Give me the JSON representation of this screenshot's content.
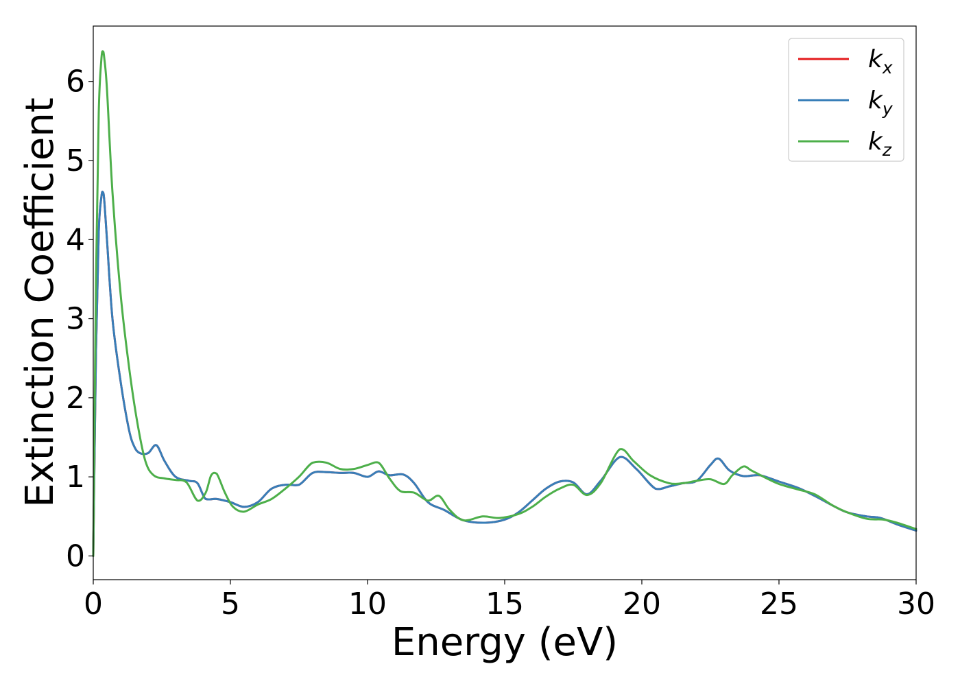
{
  "chart_data": {
    "type": "line",
    "title": "",
    "xlabel": "Energy (eV)",
    "ylabel": "Extinction Coefficient",
    "xlim": [
      0,
      30
    ],
    "ylim": [
      -0.3,
      6.7
    ],
    "xticks": [
      "0",
      "5",
      "10",
      "15",
      "20",
      "25",
      "30"
    ],
    "yticks": [
      "0",
      "1",
      "2",
      "3",
      "4",
      "5",
      "6"
    ],
    "grid": false,
    "legend_position": "top-right",
    "series": [
      {
        "name_base": "k",
        "name_sub": "x",
        "color": "#e41a1c",
        "x": [
          0,
          0.1,
          0.2,
          0.3,
          0.35,
          0.4,
          0.5,
          0.7,
          1.0,
          1.3,
          1.5,
          1.7,
          2.0,
          2.3,
          2.6,
          3.0,
          3.5,
          3.8,
          4.1,
          4.5,
          5.0,
          5.5,
          6.0,
          6.5,
          7.0,
          7.5,
          8.0,
          8.5,
          9.0,
          9.5,
          10.0,
          10.4,
          10.8,
          11.3,
          11.7,
          12.2,
          12.8,
          13.5,
          14.3,
          15.0,
          15.5,
          16.0,
          16.5,
          17.0,
          17.5,
          18.0,
          18.5,
          19.2,
          19.8,
          20.5,
          21.0,
          21.5,
          22.0,
          22.5,
          22.8,
          23.2,
          23.7,
          24.3,
          25.0,
          25.7,
          26.3,
          27.0,
          27.5,
          28.2,
          28.7,
          29.3,
          30.0
        ],
        "y": [
          0.0,
          2.6,
          4.1,
          4.55,
          4.6,
          4.5,
          4.0,
          3.0,
          2.2,
          1.6,
          1.38,
          1.3,
          1.3,
          1.4,
          1.2,
          1.0,
          0.95,
          0.92,
          0.72,
          0.72,
          0.68,
          0.62,
          0.68,
          0.85,
          0.9,
          0.9,
          1.05,
          1.06,
          1.05,
          1.05,
          1.0,
          1.07,
          1.02,
          1.03,
          0.92,
          0.68,
          0.58,
          0.45,
          0.42,
          0.46,
          0.55,
          0.7,
          0.85,
          0.94,
          0.93,
          0.78,
          0.95,
          1.25,
          1.1,
          0.85,
          0.88,
          0.92,
          0.95,
          1.15,
          1.23,
          1.08,
          1.01,
          1.02,
          0.94,
          0.86,
          0.76,
          0.63,
          0.55,
          0.5,
          0.48,
          0.4,
          0.32
        ]
      },
      {
        "name_base": "k",
        "name_sub": "y",
        "color": "#377eb8",
        "x": [
          0,
          0.1,
          0.2,
          0.3,
          0.35,
          0.4,
          0.5,
          0.7,
          1.0,
          1.3,
          1.5,
          1.7,
          2.0,
          2.3,
          2.6,
          3.0,
          3.5,
          3.8,
          4.1,
          4.5,
          5.0,
          5.5,
          6.0,
          6.5,
          7.0,
          7.5,
          8.0,
          8.5,
          9.0,
          9.5,
          10.0,
          10.4,
          10.8,
          11.3,
          11.7,
          12.2,
          12.8,
          13.5,
          14.3,
          15.0,
          15.5,
          16.0,
          16.5,
          17.0,
          17.5,
          18.0,
          18.5,
          19.2,
          19.8,
          20.5,
          21.0,
          21.5,
          22.0,
          22.5,
          22.8,
          23.2,
          23.7,
          24.3,
          25.0,
          25.7,
          26.3,
          27.0,
          27.5,
          28.2,
          28.7,
          29.3,
          30.0
        ],
        "y": [
          0.0,
          2.6,
          4.1,
          4.55,
          4.6,
          4.5,
          4.0,
          3.0,
          2.2,
          1.6,
          1.38,
          1.3,
          1.3,
          1.4,
          1.2,
          1.0,
          0.95,
          0.92,
          0.72,
          0.72,
          0.68,
          0.62,
          0.68,
          0.85,
          0.9,
          0.9,
          1.05,
          1.06,
          1.05,
          1.05,
          1.0,
          1.07,
          1.02,
          1.03,
          0.92,
          0.68,
          0.58,
          0.45,
          0.42,
          0.46,
          0.55,
          0.7,
          0.85,
          0.94,
          0.93,
          0.78,
          0.95,
          1.25,
          1.1,
          0.85,
          0.88,
          0.92,
          0.95,
          1.15,
          1.23,
          1.08,
          1.01,
          1.02,
          0.94,
          0.86,
          0.76,
          0.63,
          0.55,
          0.5,
          0.48,
          0.4,
          0.32
        ]
      },
      {
        "name_base": "k",
        "name_sub": "z",
        "color": "#4daf4a",
        "x": [
          0,
          0.1,
          0.2,
          0.3,
          0.35,
          0.4,
          0.5,
          0.7,
          1.0,
          1.3,
          1.6,
          1.9,
          2.2,
          2.6,
          3.0,
          3.4,
          3.8,
          4.1,
          4.3,
          4.5,
          4.8,
          5.1,
          5.5,
          6.0,
          6.5,
          7.0,
          7.5,
          8.0,
          8.5,
          9.0,
          9.5,
          10.0,
          10.4,
          10.8,
          11.2,
          11.7,
          12.2,
          12.6,
          13.0,
          13.5,
          14.2,
          14.8,
          15.5,
          16.0,
          16.5,
          17.0,
          17.5,
          18.0,
          18.5,
          19.2,
          19.7,
          20.3,
          21.0,
          21.5,
          22.0,
          22.5,
          23.0,
          23.3,
          23.7,
          24.0,
          24.5,
          25.0,
          25.7,
          26.3,
          27.0,
          27.5,
          28.2,
          28.8,
          29.3,
          30.0
        ],
        "y": [
          0.0,
          3.5,
          5.6,
          6.3,
          6.38,
          6.3,
          5.9,
          4.6,
          3.3,
          2.4,
          1.7,
          1.2,
          1.02,
          0.98,
          0.96,
          0.93,
          0.7,
          0.8,
          1.02,
          1.04,
          0.8,
          0.62,
          0.56,
          0.65,
          0.72,
          0.85,
          1.0,
          1.18,
          1.18,
          1.1,
          1.1,
          1.15,
          1.18,
          0.98,
          0.82,
          0.8,
          0.7,
          0.76,
          0.58,
          0.45,
          0.5,
          0.48,
          0.53,
          0.62,
          0.75,
          0.85,
          0.9,
          0.77,
          0.92,
          1.35,
          1.2,
          1.02,
          0.92,
          0.92,
          0.95,
          0.97,
          0.91,
          1.02,
          1.13,
          1.08,
          0.99,
          0.91,
          0.84,
          0.78,
          0.63,
          0.55,
          0.47,
          0.46,
          0.42,
          0.34
        ]
      }
    ]
  }
}
